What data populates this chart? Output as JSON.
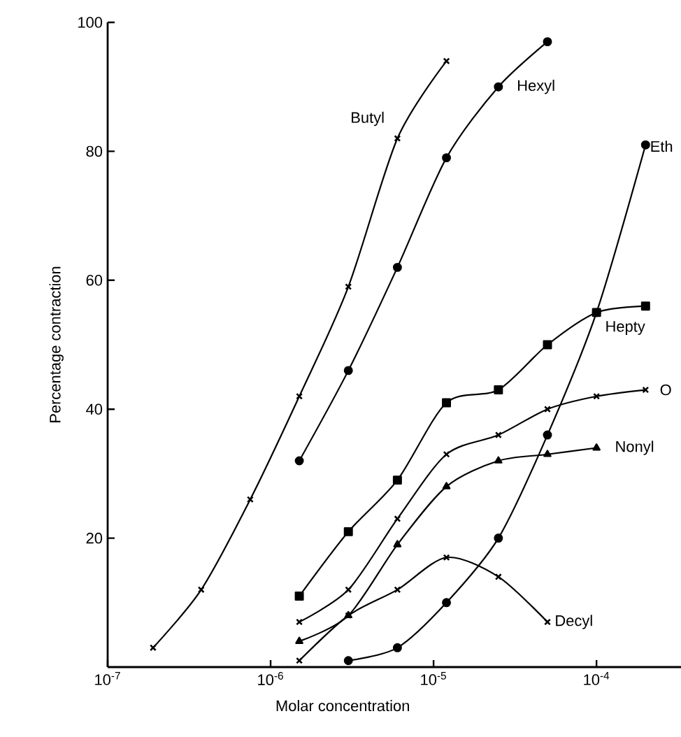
{
  "chart_data": {
    "type": "line",
    "xlabel": "Molar concentration",
    "ylabel": "Percentage contraction",
    "log": "x",
    "xlim": [
      1e-07,
      0.00033
    ],
    "ylim": [
      0,
      100
    ],
    "xticks": [
      {
        "value": 1e-07,
        "label": "10$^{-7}$"
      },
      {
        "value": 1e-06,
        "label": "10$^{-6}$"
      },
      {
        "value": 1e-05,
        "label": "10$^{-5}$"
      },
      {
        "value": 0.0001,
        "label": "10$^{-4}$"
      }
    ],
    "yticks": [
      20,
      40,
      60,
      80,
      100
    ],
    "legend": false,
    "line_style": "solid",
    "series": [
      {
        "name": "Butyl",
        "color": "#000000",
        "marker": "cross",
        "x": [
          1.9e-07,
          3.75e-07,
          7.5e-07,
          1.5e-06,
          3e-06,
          6e-06,
          1.2e-05
        ],
        "values": [
          3,
          12,
          26,
          42,
          59,
          82,
          94
        ]
      },
      {
        "name": "Hexyl",
        "color": "#000000",
        "marker": "circle",
        "x": [
          1.5e-06,
          3e-06,
          6e-06,
          1.2e-05,
          2.5e-05,
          5e-05
        ],
        "values": [
          32,
          46,
          62,
          79,
          90,
          97
        ]
      },
      {
        "name": "Eth",
        "color": "#000000",
        "marker": "circle",
        "x": [
          3e-06,
          6e-06,
          1.2e-05,
          2.5e-05,
          5e-05,
          0.0001,
          0.0002
        ],
        "values": [
          1,
          3,
          10,
          20,
          36,
          55,
          81
        ]
      },
      {
        "name": "Hepty",
        "color": "#000000",
        "marker": "square",
        "x": [
          1.5e-06,
          3e-06,
          6e-06,
          1.2e-05,
          2.5e-05,
          5e-05,
          0.0001,
          0.0002
        ],
        "values": [
          11,
          21,
          29,
          41,
          43,
          50,
          55,
          56
        ]
      },
      {
        "name": "O",
        "color": "#000000",
        "marker": "cross",
        "x": [
          1.5e-06,
          3e-06,
          6e-06,
          1.2e-05,
          2.5e-05,
          5e-05,
          0.0001,
          0.0002
        ],
        "values": [
          7,
          12,
          23,
          33,
          36,
          40,
          42,
          43
        ]
      },
      {
        "name": "Nonyl",
        "color": "#000000",
        "marker": "triangle",
        "x": [
          1.5e-06,
          3e-06,
          6e-06,
          1.2e-05,
          2.5e-05,
          5e-05,
          0.0001
        ],
        "values": [
          4,
          8,
          19,
          28,
          32,
          33,
          34
        ]
      },
      {
        "name": "Decyl",
        "color": "#000000",
        "marker": "cross",
        "x": [
          1.5e-06,
          3e-06,
          6e-06,
          1.2e-05,
          2.5e-05,
          5e-05
        ],
        "values": [
          1,
          8,
          12,
          17,
          14,
          7
        ]
      }
    ]
  }
}
